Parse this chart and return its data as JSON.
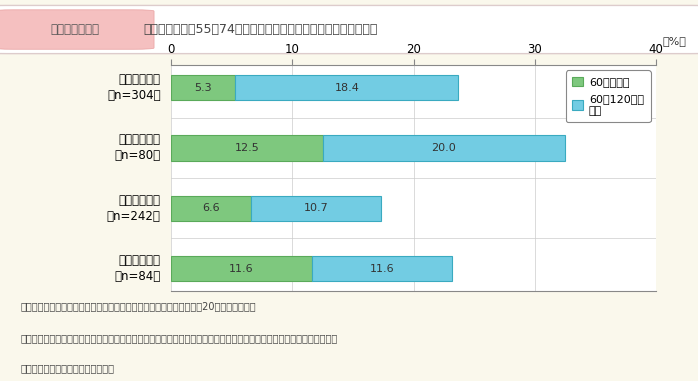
{
  "title_label": "第１－４－２図",
  "title_text": "高齢単身世帯（55～74歳）における低所得層の割合（年間収入）",
  "categories": [
    "女性単身世帯\n（n=304）",
    "うち離別女性\n（n=80）",
    "男性単身世帯\n（n=242）",
    "うち未婚男性\n（n=84）"
  ],
  "values_green": [
    5.3,
    12.5,
    6.6,
    11.6
  ],
  "values_blue": [
    18.4,
    20.0,
    10.7,
    11.6
  ],
  "labels_green": [
    "5.3",
    "12.5",
    "6.6",
    "11.6"
  ],
  "labels_blue": [
    "18.4",
    "20.0",
    "10.7",
    "11.6"
  ],
  "color_green": "#7ec87e",
  "color_blue": "#72cce3",
  "color_green_edge": "#5aaa5a",
  "color_blue_edge": "#3aaac0",
  "xlim": [
    0,
    40
  ],
  "xticks": [
    0,
    10,
    20,
    30,
    40
  ],
  "pct_label": "（%）",
  "legend_labels": [
    "60万円未満",
    "60～120万円\n未満"
  ],
  "bg_color": "#faf8ec",
  "plot_bg_color": "#ffffff",
  "note_line1": "（備考）１．内閣府「高齢男女の自立した生活に関する調査」（平成20年）より作成。",
  "note_line2": "　　　　２．「収入」は税込みであり，就業による収入，年金等による収入のほか，預貯金の引き出し，家賃収入や利子",
  "note_line3": "　　　　　　等による収入も含む。"
}
